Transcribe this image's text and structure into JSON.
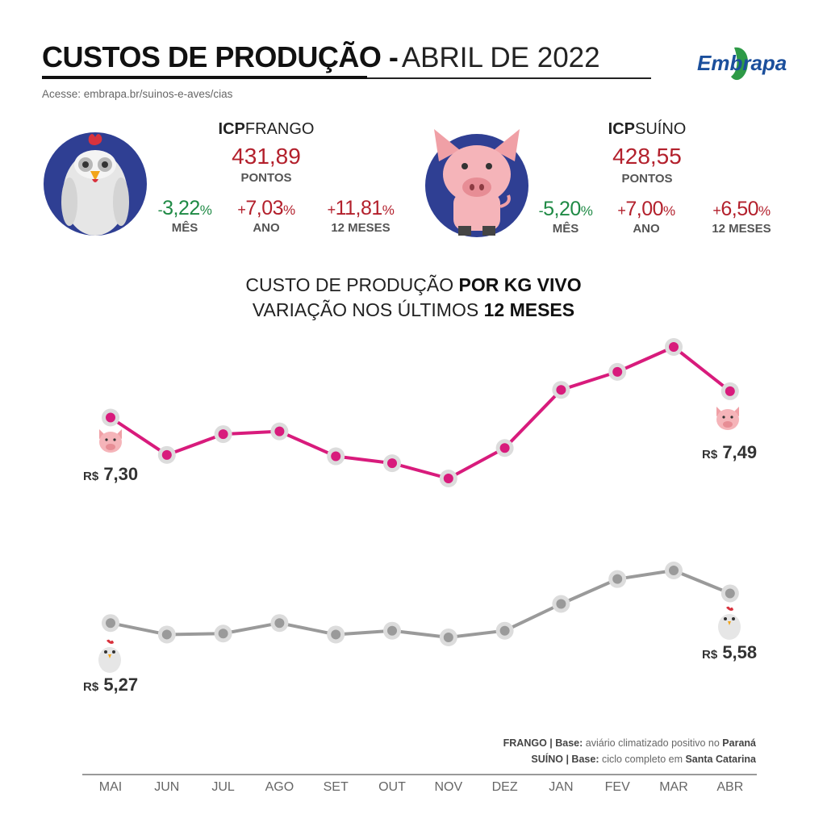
{
  "header": {
    "title_bold": "CUSTOS DE PRODUÇÃO -",
    "title_light": "ABRIL DE 2022",
    "access": "Acesse: embrapa.br/suinos-e-aves/cias",
    "logo_text": "Embrapa",
    "colors": {
      "brand_blue": "#1b4f9c",
      "brand_green": "#2e9a47"
    }
  },
  "frango": {
    "icp_bold": "ICP",
    "icp_name": "FRANGO",
    "value": "431,89",
    "unit": "PONTOS",
    "month": {
      "sign": "-",
      "value": "3,22",
      "pct": "%",
      "label": "MÊS"
    },
    "year": {
      "sign": "+",
      "value": "7,03",
      "pct": "%",
      "label": "ANO"
    },
    "twelve": {
      "sign": "+",
      "value": "11,81",
      "pct": "%",
      "label": "12 MESES"
    }
  },
  "suino": {
    "icp_bold": "ICP",
    "icp_name": "SUÍNO",
    "value": "428,55",
    "unit": "PONTOS",
    "month": {
      "sign": "-",
      "value": "5,20",
      "pct": "%",
      "label": "MÊS"
    },
    "year": {
      "sign": "+",
      "value": "7,00",
      "pct": "%",
      "label": "ANO"
    },
    "twelve": {
      "sign": "+",
      "value": "6,50",
      "pct": "%",
      "label": "12 MESES"
    }
  },
  "chart_title": {
    "line1_light": "CUSTO DE PRODUÇÃO ",
    "line1_bold": "POR KG VIVO",
    "line2_light": "VARIAÇÃO NOS ÚLTIMOS ",
    "line2_bold": "12 MESES"
  },
  "notes": {
    "frango_label": "FRANGO | Base:",
    "frango_text": " aviário climatizado positivo no ",
    "frango_place": "Paraná",
    "suino_label": "SUÍNO | Base:",
    "suino_text": " ciclo completo em ",
    "suino_place": "Santa Catarina"
  },
  "price_labels": {
    "currency": "R$",
    "suino_start": "7,30",
    "suino_end": "7,49",
    "frango_start": "5,27",
    "frango_end": "5,58"
  },
  "chart_data": {
    "type": "line",
    "title": "CUSTO DE PRODUÇÃO POR KG VIVO — VARIAÇÃO NOS ÚLTIMOS 12 MESES",
    "categories": [
      "MAI",
      "JUN",
      "JUL",
      "AGO",
      "SET",
      "OUT",
      "NOV",
      "DEZ",
      "JAN",
      "FEV",
      "MAR",
      "ABR"
    ],
    "series": [
      {
        "name": "SUÍNO",
        "color": "#d81b7c",
        "values": [
          7.3,
          7.03,
          7.18,
          7.2,
          7.02,
          6.97,
          6.86,
          7.08,
          7.5,
          7.63,
          7.81,
          7.49
        ]
      },
      {
        "name": "FRANGO",
        "color": "#9a9a9a",
        "values": [
          5.27,
          5.15,
          5.16,
          5.27,
          5.15,
          5.19,
          5.12,
          5.19,
          5.47,
          5.73,
          5.82,
          5.58
        ]
      }
    ],
    "xlabel": "",
    "ylabel": "",
    "grid": false,
    "legend": "none"
  }
}
